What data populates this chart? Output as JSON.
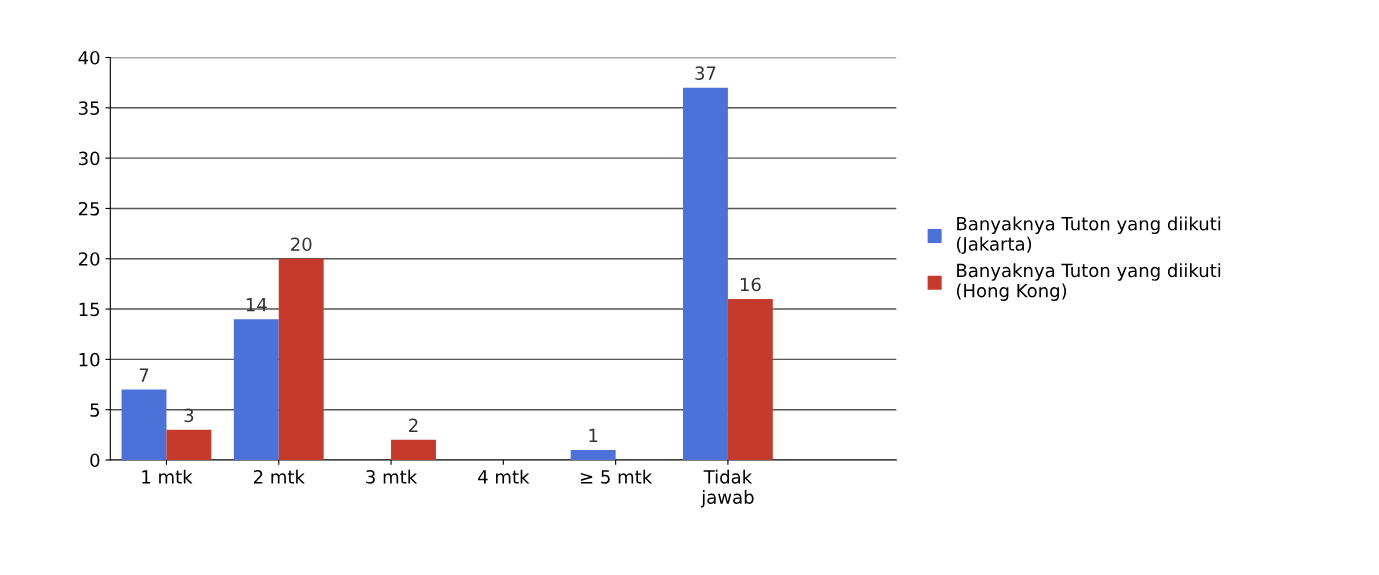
{
  "chart_data": {
    "type": "bar",
    "categories": [
      "1 mtk",
      "2 mtk",
      "3 mtk",
      "4 mtk",
      "≥ 5 mtk",
      "Tidak\njawab"
    ],
    "series": [
      {
        "name": "Banyaknya Tuton yang diikuti\n(Jakarta)",
        "color": "#4a72d8",
        "values": [
          7,
          14,
          null,
          null,
          1,
          37
        ]
      },
      {
        "name": "Banyaknya Tuton yang diikuti\n(Hong Kong)",
        "color": "#c63a2c",
        "values": [
          3,
          20,
          2,
          null,
          null,
          16
        ]
      }
    ],
    "ylim": [
      0,
      40
    ],
    "yticks": [
      0,
      5,
      10,
      15,
      20,
      25,
      30,
      35,
      40
    ],
    "grid": "y",
    "legend": "right",
    "data_labels": true
  }
}
